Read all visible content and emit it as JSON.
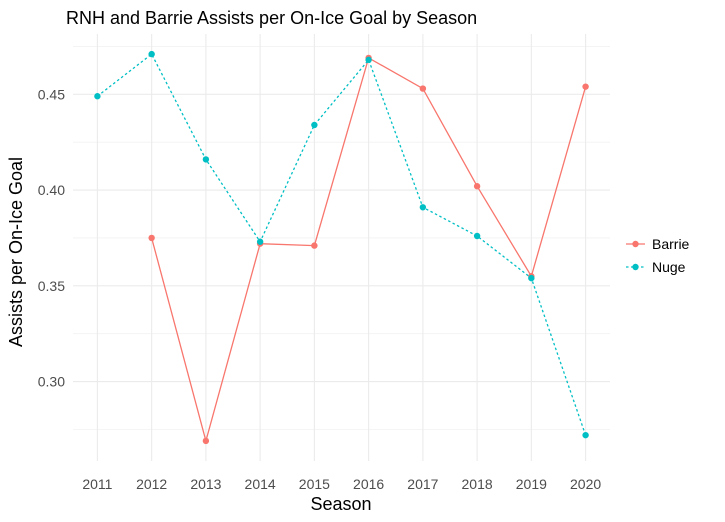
{
  "chart_data": {
    "type": "line",
    "title": "RNH and Barrie Assists per On-Ice Goal by Season",
    "xlabel": "Season",
    "ylabel": "Assists per On-Ice Goal",
    "x": [
      2011,
      2012,
      2013,
      2014,
      2015,
      2016,
      2017,
      2018,
      2019,
      2020
    ],
    "xlim": [
      2010.55,
      2020.45
    ],
    "ylim": [
      0.2585,
      0.4815
    ],
    "y_ticks": [
      0.3,
      0.35,
      0.4,
      0.45
    ],
    "y_tick_labels": [
      "0.30",
      "0.35",
      "0.40",
      "0.45"
    ],
    "grid": true,
    "legend_position": "right",
    "series": [
      {
        "name": "Barrie",
        "color": "#f8766d",
        "dash": "solid",
        "values": [
          null,
          0.375,
          0.269,
          0.372,
          0.371,
          0.469,
          0.453,
          0.402,
          0.355,
          0.454
        ]
      },
      {
        "name": "Nuge",
        "color": "#00bfc4",
        "dash": "dotted",
        "values": [
          0.449,
          0.471,
          0.416,
          0.373,
          0.434,
          0.468,
          0.391,
          0.376,
          0.354,
          0.272
        ]
      }
    ]
  }
}
